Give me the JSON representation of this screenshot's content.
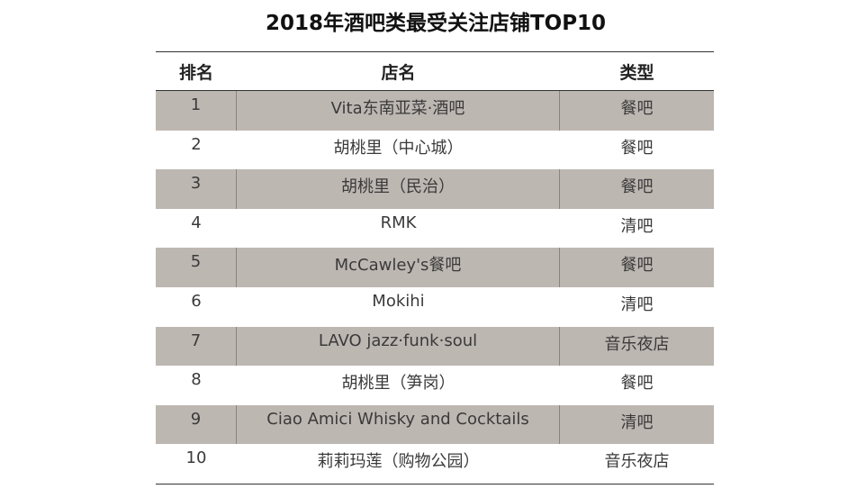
{
  "title": "2018年酒吧类最受关注店铺TOP10",
  "table": {
    "headers": {
      "rank": "排名",
      "name": "店名",
      "type": "类型"
    },
    "rows": [
      {
        "rank": "1",
        "name": "Vita东南亚菜·酒吧",
        "type": "餐吧"
      },
      {
        "rank": "2",
        "name": "胡桃里（中心城）",
        "type": "餐吧"
      },
      {
        "rank": "3",
        "name": "胡桃里（民治）",
        "type": "餐吧"
      },
      {
        "rank": "4",
        "name": "RMK",
        "type": "清吧"
      },
      {
        "rank": "5",
        "name": "McCawley's餐吧",
        "type": "餐吧"
      },
      {
        "rank": "6",
        "name": "Mokihi",
        "type": "清吧"
      },
      {
        "rank": "7",
        "name": "LAVO jazz·funk·soul",
        "type": "音乐夜店"
      },
      {
        "rank": "8",
        "name": "胡桃里（笋岗）",
        "type": "餐吧"
      },
      {
        "rank": "9",
        "name": "Ciao Amici Whisky and Cocktails",
        "type": "清吧"
      },
      {
        "rank": "10",
        "name": "莉莉玛莲（购物公园）",
        "type": "音乐夜店"
      }
    ],
    "shade_color": "#bdb7b2"
  }
}
